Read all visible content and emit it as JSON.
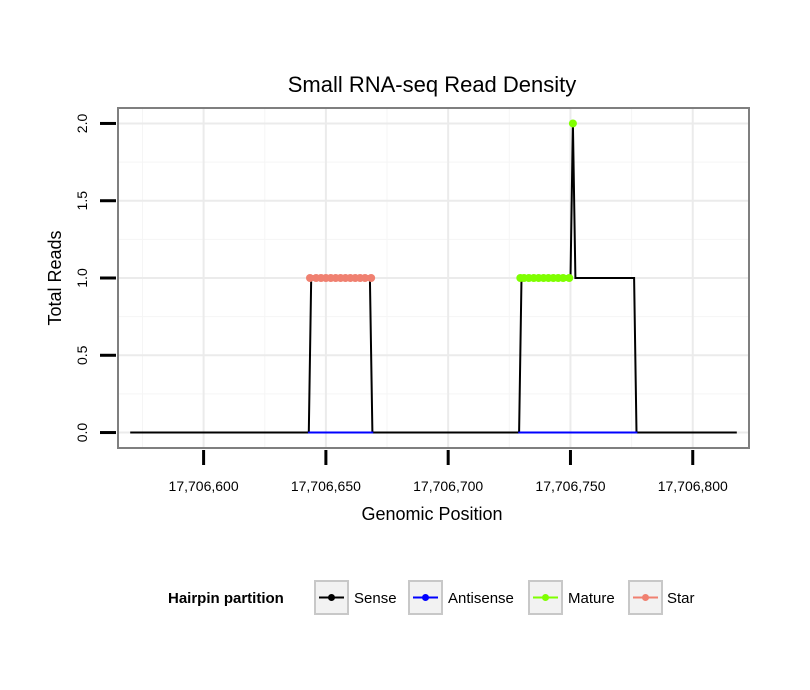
{
  "chart_data": {
    "type": "line",
    "title": "Small RNA-seq Read Density",
    "xlabel": "Genomic Position",
    "ylabel": "Total Reads",
    "xlim": [
      17706565,
      17706823
    ],
    "ylim": [
      -0.1,
      2.1
    ],
    "x_ticks": [
      17706600,
      17706650,
      17706700,
      17706750,
      17706800
    ],
    "x_tick_labels": [
      "17,706,600",
      "17,706,650",
      "17,706,700",
      "17,706,750",
      "17,706,800"
    ],
    "y_ticks": [
      0,
      0.5,
      1,
      1.5,
      2
    ],
    "y_tick_labels": [
      "0.0",
      "0.5",
      "1.0",
      "1.5",
      "2.0"
    ],
    "grid": true,
    "legend_position": "bottom",
    "legend_title": "Hairpin partition",
    "series": [
      {
        "name": "Sense",
        "color": "#000000",
        "points": [
          [
            17706570,
            0
          ],
          [
            17706643,
            0
          ],
          [
            17706644,
            1
          ],
          [
            17706668,
            1
          ],
          [
            17706669,
            0
          ],
          [
            17706729,
            0
          ],
          [
            17706730,
            1
          ],
          [
            17706750,
            1
          ],
          [
            17706751,
            2
          ],
          [
            17706752,
            1
          ],
          [
            17706776,
            1
          ],
          [
            17706777,
            0
          ],
          [
            17706818,
            0
          ]
        ]
      },
      {
        "name": "Antisense",
        "color": "#0000ff",
        "points": [
          [
            17706643,
            0
          ],
          [
            17706669,
            0
          ],
          [
            17706729,
            0
          ],
          [
            17706777,
            0
          ]
        ],
        "segments": [
          [
            0,
            1
          ],
          [
            2,
            3
          ]
        ]
      },
      {
        "name": "Mature",
        "color": "#7fff00",
        "points": [
          [
            17706729.5,
            1
          ],
          [
            17706731,
            1
          ],
          [
            17706733,
            1
          ],
          [
            17706735,
            1
          ],
          [
            17706737,
            1
          ],
          [
            17706739,
            1
          ],
          [
            17706741,
            1
          ],
          [
            17706743,
            1
          ],
          [
            17706745,
            1
          ],
          [
            17706747,
            1
          ],
          [
            17706749.5,
            1
          ],
          [
            17706751,
            2
          ]
        ],
        "segments": [
          [
            0,
            10
          ]
        ]
      },
      {
        "name": "Star",
        "color": "#f08070",
        "points": [
          [
            17706643.5,
            1
          ],
          [
            17706646,
            1
          ],
          [
            17706648,
            1
          ],
          [
            17706650,
            1
          ],
          [
            17706652,
            1
          ],
          [
            17706654,
            1
          ],
          [
            17706656,
            1
          ],
          [
            17706658,
            1
          ],
          [
            17706660,
            1
          ],
          [
            17706662,
            1
          ],
          [
            17706664,
            1
          ],
          [
            17706666,
            1
          ],
          [
            17706668.5,
            1
          ]
        ],
        "segments": [
          [
            0,
            12
          ]
        ]
      }
    ]
  }
}
